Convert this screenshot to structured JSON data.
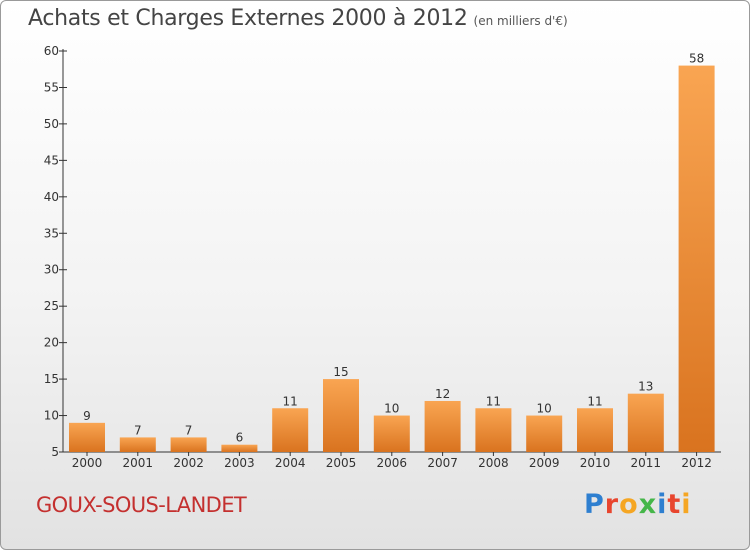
{
  "title": "Achats et Charges Externes 2000 à 2012",
  "subtitle": "(en milliers d'€)",
  "commune": "GOUX-SOUS-LANDET",
  "logo": "Proxiti",
  "colors": {
    "bar_top": "#f9a552",
    "bar_bottom": "#d9731f",
    "commune": "#c4302f"
  },
  "chart_data": {
    "type": "bar",
    "categories": [
      "2000",
      "2001",
      "2002",
      "2003",
      "2004",
      "2005",
      "2006",
      "2007",
      "2008",
      "2009",
      "2010",
      "2011",
      "2012"
    ],
    "values": [
      9,
      7,
      7,
      6,
      11,
      15,
      10,
      12,
      11,
      10,
      11,
      13,
      58
    ],
    "title": "Achats et Charges Externes 2000 à 2012",
    "subtitle": "(en milliers d'€)",
    "xlabel": "",
    "ylabel": "",
    "ylim": [
      5,
      60
    ],
    "yticks": [
      5,
      10,
      15,
      20,
      25,
      30,
      35,
      40,
      45,
      50,
      55,
      60
    ],
    "grid": false,
    "data_labels": true
  }
}
